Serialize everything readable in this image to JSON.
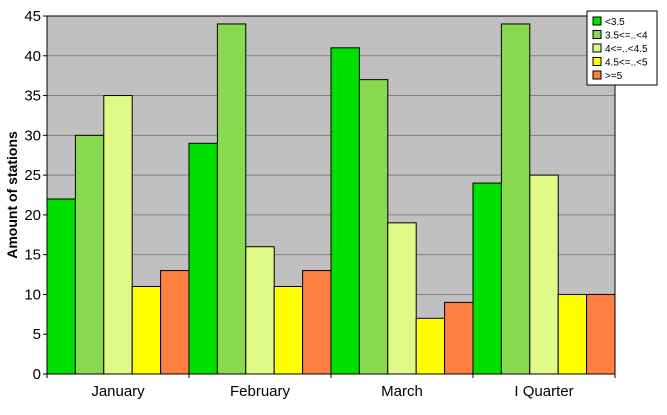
{
  "chart_data": {
    "type": "bar",
    "categories": [
      "January",
      "February",
      "March",
      "I Quarter"
    ],
    "series": [
      {
        "name": "<3.5",
        "color": "#00e000",
        "values": [
          22,
          29,
          41,
          24
        ]
      },
      {
        "name": "3.5<=..<4",
        "color": "#88d850",
        "values": [
          30,
          44,
          37,
          44
        ]
      },
      {
        "name": "4<=..<4.5",
        "color": "#e0fa88",
        "values": [
          35,
          16,
          19,
          25
        ]
      },
      {
        "name": "4.5<=..<5",
        "color": "#ffff00",
        "values": [
          11,
          11,
          7,
          10
        ]
      },
      {
        "name": ">=5",
        "color": "#ff8040",
        "values": [
          13,
          13,
          9,
          10
        ]
      }
    ],
    "xlabel": "",
    "ylabel": "Amount of stations",
    "ylim": [
      0,
      45
    ],
    "yticks": [
      0,
      5,
      10,
      15,
      20,
      25,
      30,
      35,
      40,
      45
    ],
    "grid": true,
    "legend_position": "top-right",
    "plot_background": "#c0c0c0"
  }
}
